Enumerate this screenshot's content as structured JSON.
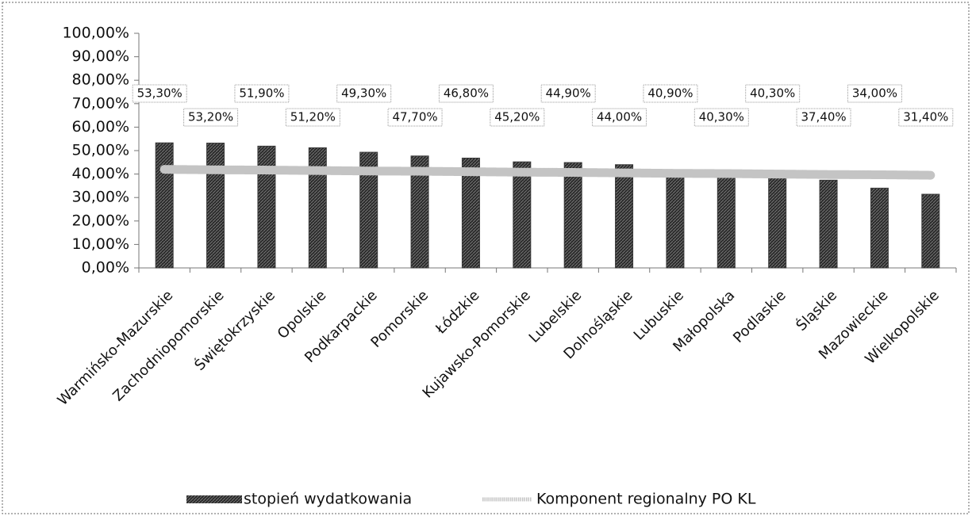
{
  "chart_data": {
    "type": "bar",
    "categories": [
      "Warmińsko-Mazurskie",
      "Zachodniopomorskie",
      "Świętokrzyskie",
      "Opolskie",
      "Podkarpackie",
      "Pomorskie",
      "Łódzkie",
      "Kujawsko-Pomorskie",
      "Lubelskie",
      "Dolnośląskie",
      "Lubuskie",
      "Małopolska",
      "Podlaskie",
      "Śląskie",
      "Mazowieckie",
      "Wielkopolskie"
    ],
    "series": [
      {
        "name": "stopień wydatkowania",
        "type": "bar",
        "color": "#3a3a3a",
        "values": [
          53.3,
          53.2,
          51.9,
          51.2,
          49.3,
          47.7,
          46.8,
          45.2,
          44.9,
          44.0,
          40.9,
          40.3,
          40.3,
          37.4,
          34.0,
          31.4
        ],
        "value_labels": [
          "53,30%",
          "53,20%",
          "51,90%",
          "51,20%",
          "49,30%",
          "47,70%",
          "46,80%",
          "45,20%",
          "44,90%",
          "44,00%",
          "40,90%",
          "40,30%",
          "40,30%",
          "37,40%",
          "34,00%",
          "31,40%"
        ]
      },
      {
        "name": "Komponent regionalny PO KL",
        "type": "line",
        "color": "#c4c4c4",
        "values": [
          42.0,
          41.8,
          41.7,
          41.5,
          41.3,
          41.2,
          41.0,
          40.8,
          40.7,
          40.5,
          40.3,
          40.2,
          40.0,
          39.8,
          39.7,
          39.5
        ]
      }
    ],
    "ylim": [
      0,
      100
    ],
    "yticks": [
      {
        "value": 0,
        "label": "0,00%"
      },
      {
        "value": 10,
        "label": "10,00%"
      },
      {
        "value": 20,
        "label": "20,00%"
      },
      {
        "value": 30,
        "label": "30,00%"
      },
      {
        "value": 40,
        "label": "40,00%"
      },
      {
        "value": 50,
        "label": "50,00%"
      },
      {
        "value": 60,
        "label": "60,00%"
      },
      {
        "value": 70,
        "label": "70,00%"
      },
      {
        "value": 80,
        "label": "80,00%"
      },
      {
        "value": 90,
        "label": "90,00%"
      },
      {
        "value": 100,
        "label": "100,00%"
      }
    ],
    "grid": false,
    "legend": "bottom"
  }
}
